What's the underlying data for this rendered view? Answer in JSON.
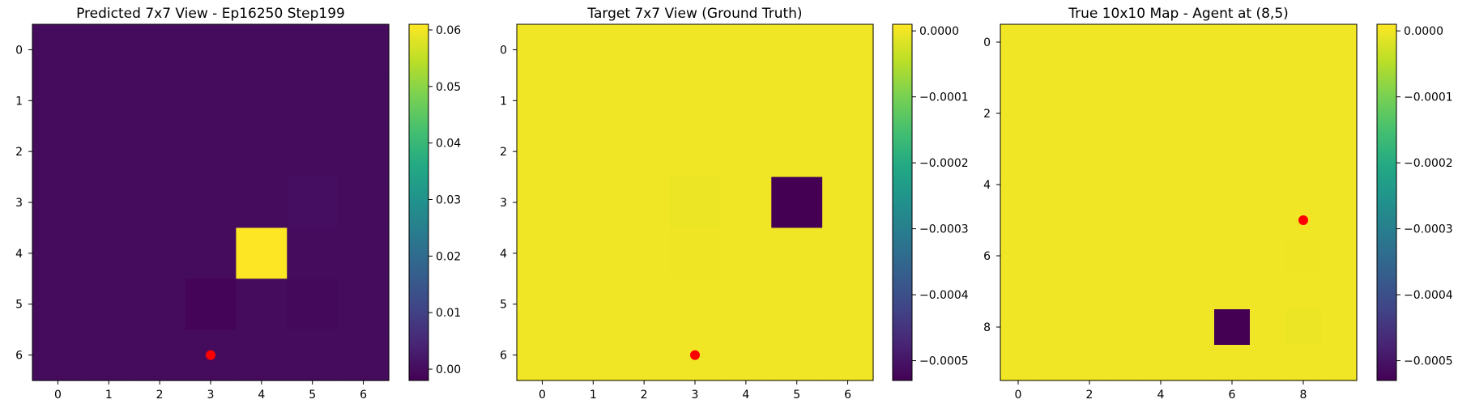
{
  "chart_data": [
    {
      "type": "heatmap",
      "title": "Predicted 7x7 View - Ep16250 Step199",
      "rows": 7,
      "cols": 7,
      "x_ticks": [
        0,
        1,
        2,
        3,
        4,
        5,
        6
      ],
      "y_ticks": [
        0,
        1,
        2,
        3,
        4,
        5,
        6
      ],
      "colorbar": {
        "vmin": -0.002,
        "vmax": 0.061,
        "ticks": [
          0.06,
          0.05,
          0.04,
          0.03,
          0.02,
          0.01,
          0.0
        ],
        "tick_labels": [
          "0.06",
          "0.05",
          "0.04",
          "0.03",
          "0.02",
          "0.01",
          "0.00"
        ]
      },
      "values": [
        [
          0,
          0,
          0,
          0,
          0,
          0,
          0
        ],
        [
          0,
          0,
          0,
          0,
          0,
          0,
          0
        ],
        [
          0,
          0,
          0,
          0,
          0,
          0,
          0
        ],
        [
          0,
          0,
          0,
          0,
          0,
          0.0003,
          0
        ],
        [
          0,
          0,
          0,
          0,
          0.061,
          0,
          0
        ],
        [
          0,
          0,
          0,
          -0.0015,
          0,
          -0.0005,
          0
        ],
        [
          0,
          0,
          0,
          0,
          0,
          0,
          0
        ]
      ],
      "marker": {
        "x": 3,
        "y": 6,
        "color": "#ff0000"
      }
    },
    {
      "type": "heatmap",
      "title": "Target 7x7 View (Ground Truth)",
      "rows": 7,
      "cols": 7,
      "x_ticks": [
        0,
        1,
        2,
        3,
        4,
        5,
        6
      ],
      "y_ticks": [
        0,
        1,
        2,
        3,
        4,
        5,
        6
      ],
      "colorbar": {
        "vmin": -0.00053,
        "vmax": 1e-05,
        "ticks": [
          0.0,
          -0.0001,
          -0.0002,
          -0.0003,
          -0.0004,
          -0.0005
        ],
        "tick_labels": [
          "0.0000",
          "−0.0001",
          "−0.0002",
          "−0.0003",
          "−0.0004",
          "−0.0005"
        ]
      },
      "values": [
        [
          0,
          0,
          0,
          0,
          0,
          0,
          0
        ],
        [
          0,
          0,
          0,
          0,
          0,
          0,
          0
        ],
        [
          0,
          0,
          0,
          0,
          0,
          0,
          0
        ],
        [
          0,
          0,
          0,
          -5e-06,
          0,
          -0.00053,
          0
        ],
        [
          0,
          0,
          0,
          -2e-06,
          0,
          0,
          0
        ],
        [
          0,
          0,
          0,
          0,
          0,
          0,
          0
        ],
        [
          0,
          0,
          0,
          0,
          0,
          0,
          0
        ]
      ],
      "marker": {
        "x": 3,
        "y": 6,
        "color": "#ff0000"
      }
    },
    {
      "type": "heatmap",
      "title": "True 10x10 Map - Agent at (8,5)",
      "rows": 10,
      "cols": 10,
      "x_ticks": [
        0,
        2,
        4,
        6,
        8
      ],
      "y_ticks": [
        0,
        2,
        4,
        6,
        8
      ],
      "colorbar": {
        "vmin": -0.00053,
        "vmax": 1e-05,
        "ticks": [
          0.0,
          -0.0001,
          -0.0002,
          -0.0003,
          -0.0004,
          -0.0005
        ],
        "tick_labels": [
          "0.0000",
          "−0.0001",
          "−0.0002",
          "−0.0003",
          "−0.0004",
          "−0.0005"
        ]
      },
      "values": [
        [
          0,
          0,
          0,
          0,
          0,
          0,
          0,
          0,
          0,
          0
        ],
        [
          0,
          0,
          0,
          0,
          0,
          0,
          0,
          0,
          0,
          0
        ],
        [
          0,
          0,
          0,
          0,
          0,
          0,
          0,
          0,
          0,
          0
        ],
        [
          0,
          0,
          0,
          0,
          0,
          0,
          0,
          0,
          0,
          0
        ],
        [
          0,
          0,
          0,
          0,
          0,
          0,
          0,
          0,
          0,
          0
        ],
        [
          0,
          0,
          0,
          0,
          0,
          0,
          0,
          0,
          0,
          0
        ],
        [
          0,
          0,
          0,
          0,
          0,
          0,
          0,
          0,
          -2e-06,
          0
        ],
        [
          0,
          0,
          0,
          0,
          0,
          0,
          0,
          0,
          0,
          0
        ],
        [
          0,
          0,
          0,
          0,
          0,
          0,
          -0.00053,
          0,
          -5e-06,
          0
        ],
        [
          0,
          0,
          0,
          0,
          0,
          0,
          0,
          0,
          0,
          0
        ]
      ],
      "marker": {
        "x": 8,
        "y": 5,
        "color": "#ff0000"
      }
    }
  ]
}
